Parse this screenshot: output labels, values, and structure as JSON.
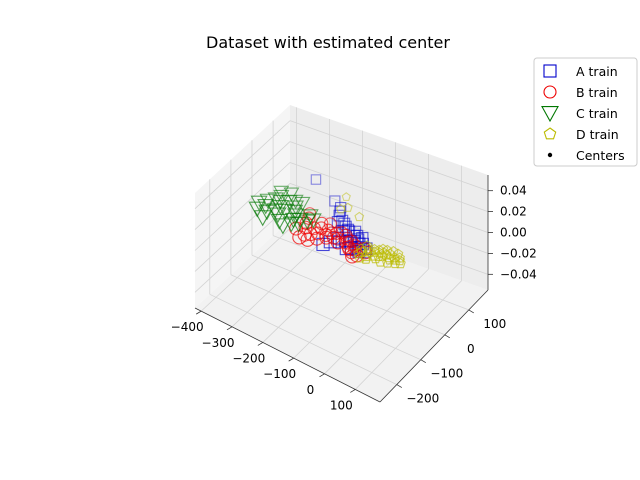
{
  "chart_data": {
    "type": "scatter",
    "projection": "3d",
    "title": "Dataset with estimated center",
    "xlabel": "",
    "ylabel": "",
    "zlabel": "",
    "xlim": [
      -420,
      180
    ],
    "ylim": [
      -270,
      180
    ],
    "zlim": [
      -0.055,
      0.055
    ],
    "grid": true,
    "legend_position": "top-right",
    "x_ticks": [
      "−400",
      "−300",
      "−200",
      "−100",
      "0",
      "100"
    ],
    "y_ticks": [
      "−200",
      "−100",
      "0",
      "100"
    ],
    "z_ticks": [
      "0.04",
      "0.02",
      "0.00",
      "−0.02",
      "−0.04"
    ],
    "legend": [
      {
        "label": "A train",
        "marker": "square",
        "color": "#0000cc"
      },
      {
        "label": "B train",
        "marker": "circle",
        "color": "#ee0000"
      },
      {
        "label": "C train",
        "marker": "triangle-down",
        "color": "#007700"
      },
      {
        "label": "D train",
        "marker": "pentagon",
        "color": "#bbbb00"
      },
      {
        "label": "Centers",
        "marker": "dot",
        "color": "#000000"
      }
    ],
    "series": [
      {
        "name": "A train",
        "marker": "square",
        "color": "#0000cc",
        "points": [
          [
            -323,
            152
          ],
          [
            -232,
            102
          ],
          [
            -204,
            87
          ],
          [
            -197,
            74
          ],
          [
            -189,
            59
          ],
          [
            -171,
            46
          ],
          [
            -178,
            36
          ],
          [
            -160,
            39
          ],
          [
            -150,
            31
          ],
          [
            -138,
            24
          ],
          [
            -148,
            13
          ],
          [
            -132,
            20
          ],
          [
            -118,
            27
          ],
          [
            -112,
            12
          ],
          [
            -104,
            16
          ],
          [
            -94,
            6
          ],
          [
            -88,
            16
          ],
          [
            -98,
            -4
          ],
          [
            -108,
            -10
          ],
          [
            -120,
            -14
          ],
          [
            -130,
            -26
          ],
          [
            -150,
            -38
          ],
          [
            -160,
            -56
          ],
          [
            -82,
            -6
          ],
          [
            -74,
            -2
          ],
          [
            -70,
            -16
          ],
          [
            -76,
            -26
          ],
          [
            -90,
            -30
          ],
          [
            -100,
            -38
          ],
          [
            -142,
            -16
          ],
          [
            -66,
            -30
          ],
          [
            -56,
            -12
          ],
          [
            -52,
            -24
          ]
        ]
      },
      {
        "name": "B train",
        "marker": "circle",
        "color": "#ee0000",
        "points": [
          [
            -227,
            -66
          ],
          [
            -222,
            -50
          ],
          [
            -210,
            -40
          ],
          [
            -196,
            -28
          ],
          [
            -186,
            -46
          ],
          [
            -174,
            -22
          ],
          [
            -166,
            -8
          ],
          [
            -155,
            -2
          ],
          [
            -145,
            6
          ],
          [
            -140,
            -18
          ],
          [
            -130,
            3
          ],
          [
            -120,
            -6
          ],
          [
            -112,
            -19
          ],
          [
            -104,
            -8
          ],
          [
            -98,
            -30
          ],
          [
            -92,
            -36
          ],
          [
            -80,
            -42
          ],
          [
            -70,
            -54
          ],
          [
            -62,
            -45
          ],
          [
            -78,
            -30
          ],
          [
            -86,
            -18
          ],
          [
            -132,
            -30
          ],
          [
            -152,
            -20
          ],
          [
            -168,
            -30
          ],
          [
            -180,
            -4
          ],
          [
            -60,
            -15
          ],
          [
            -50,
            -25
          ],
          [
            -200,
            -6
          ],
          [
            -190,
            20
          ],
          [
            -210,
            10
          ],
          [
            -216,
            -16
          ],
          [
            -204,
            -62
          ],
          [
            -236,
            -26
          ],
          [
            -244,
            -10
          ],
          [
            -250,
            10
          ],
          [
            -258,
            26
          ],
          [
            -254,
            -42
          ]
        ]
      },
      {
        "name": "C train",
        "marker": "triangle-down",
        "color": "#007700",
        "points": [
          [
            -370,
            62
          ],
          [
            -360,
            47
          ],
          [
            -350,
            28
          ],
          [
            -338,
            10
          ],
          [
            -342,
            -10
          ],
          [
            -326,
            -20
          ],
          [
            -318,
            4
          ],
          [
            -330,
            40
          ],
          [
            -304,
            30
          ],
          [
            -296,
            14
          ],
          [
            -286,
            2
          ],
          [
            -280,
            -16
          ],
          [
            -276,
            -32
          ],
          [
            -266,
            -6
          ],
          [
            -260,
            -22
          ],
          [
            -252,
            20
          ],
          [
            -246,
            -2
          ],
          [
            -236,
            10
          ],
          [
            -356,
            -26
          ],
          [
            -308,
            -40
          ],
          [
            -290,
            -50
          ],
          [
            -318,
            50
          ],
          [
            -298,
            52
          ],
          [
            -344,
            70
          ],
          [
            -372,
            -8
          ],
          [
            -384,
            -30
          ],
          [
            -394,
            -6
          ],
          [
            -380,
            14
          ],
          [
            -366,
            30
          ],
          [
            -352,
            -52
          ]
        ]
      },
      {
        "name": "D train",
        "marker": "pentagon",
        "color": "#bbbb00",
        "points": [
          [
            -60,
            -2
          ],
          [
            -50,
            -10
          ],
          [
            -42,
            -18
          ],
          [
            -36,
            -4
          ],
          [
            -30,
            -12
          ],
          [
            -24,
            0
          ],
          [
            -18,
            -8
          ],
          [
            -12,
            -20
          ],
          [
            -8,
            -2
          ],
          [
            -4,
            -14
          ],
          [
            2,
            -6
          ],
          [
            8,
            2
          ],
          [
            14,
            -10
          ],
          [
            20,
            -16
          ],
          [
            26,
            -4
          ],
          [
            32,
            -10
          ],
          [
            38,
            2
          ],
          [
            44,
            -6
          ],
          [
            -18,
            8
          ],
          [
            -6,
            10
          ],
          [
            10,
            14
          ],
          [
            26,
            12
          ],
          [
            -26,
            -26
          ],
          [
            -40,
            -36
          ],
          [
            -50,
            -48
          ],
          [
            -34,
            -44
          ],
          [
            -14,
            -30
          ],
          [
            4,
            -34
          ],
          [
            22,
            -28
          ],
          [
            40,
            -20
          ],
          [
            52,
            -14
          ],
          [
            -58,
            -28
          ],
          [
            -66,
            -20
          ],
          [
            -62,
            -36
          ],
          [
            -188,
            96
          ],
          [
            -216,
            130
          ],
          [
            -200,
            82
          ],
          [
            -142,
            80
          ]
        ]
      }
    ]
  }
}
